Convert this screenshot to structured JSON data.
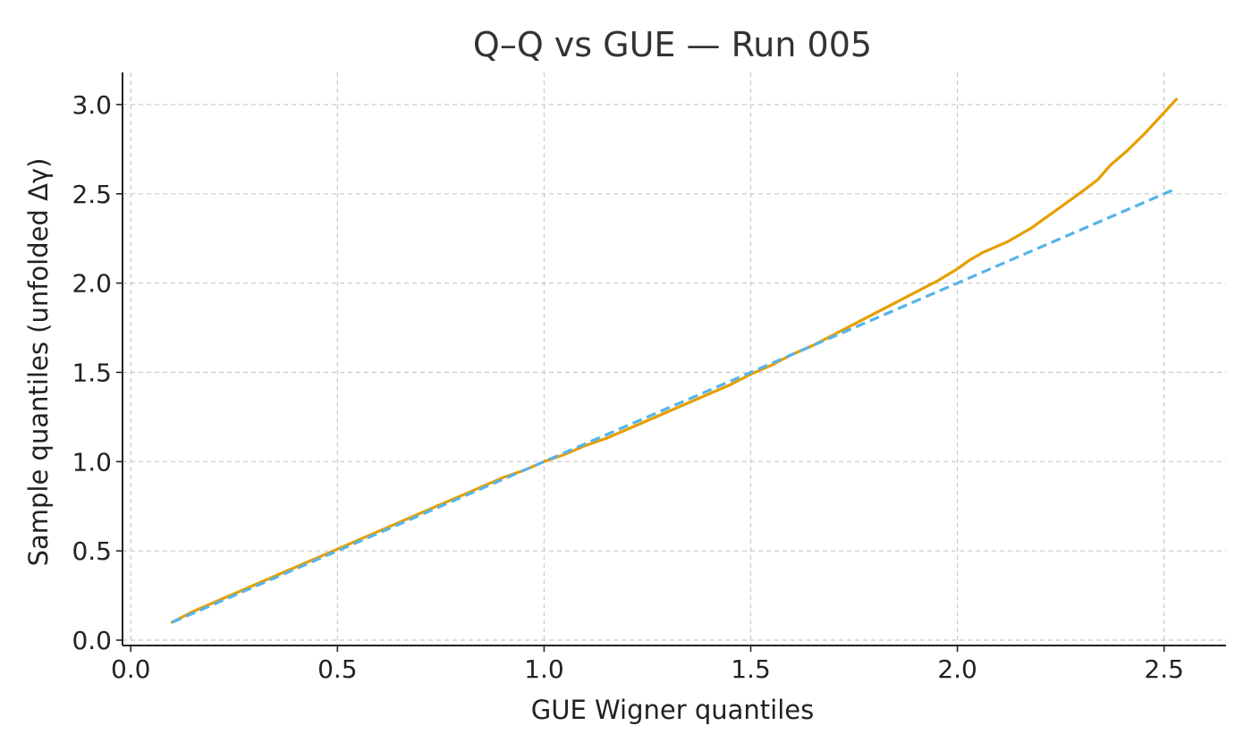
{
  "chart_data": {
    "type": "line",
    "title": "Q–Q vs GUE — Run 005",
    "xlabel": "GUE Wigner quantiles",
    "ylabel": "Sample quantiles (unfolded Δγ)",
    "xlim": [
      -0.02,
      2.65
    ],
    "ylim": [
      -0.03,
      3.18
    ],
    "xticks": [
      0.0,
      0.5,
      1.0,
      1.5,
      2.0,
      2.5
    ],
    "xtick_labels": [
      "0.0",
      "0.5",
      "1.0",
      "1.5",
      "2.0",
      "2.5"
    ],
    "yticks": [
      0.0,
      0.5,
      1.0,
      1.5,
      2.0,
      2.5,
      3.0
    ],
    "ytick_labels": [
      "0.0",
      "0.5",
      "1.0",
      "1.5",
      "2.0",
      "2.5",
      "3.0"
    ],
    "grid": true,
    "legend": "none",
    "series": [
      {
        "style": "solid",
        "color": "#E69F00",
        "x": [
          0.1,
          0.15,
          0.2,
          0.25,
          0.3,
          0.35,
          0.4,
          0.45,
          0.5,
          0.55,
          0.6,
          0.65,
          0.7,
          0.75,
          0.8,
          0.85,
          0.9,
          0.95,
          1.0,
          1.05,
          1.1,
          1.15,
          1.2,
          1.25,
          1.3,
          1.35,
          1.4,
          1.45,
          1.5,
          1.55,
          1.6,
          1.65,
          1.7,
          1.75,
          1.8,
          1.85,
          1.9,
          1.95,
          2.0,
          2.03,
          2.06,
          2.09,
          2.12,
          2.15,
          2.18,
          2.21,
          2.24,
          2.27,
          2.3,
          2.34,
          2.37,
          2.41,
          2.45,
          2.49,
          2.53
        ],
        "y": [
          0.1,
          0.16,
          0.21,
          0.26,
          0.31,
          0.36,
          0.41,
          0.46,
          0.51,
          0.56,
          0.61,
          0.66,
          0.71,
          0.76,
          0.81,
          0.86,
          0.91,
          0.95,
          1.0,
          1.04,
          1.09,
          1.13,
          1.18,
          1.23,
          1.28,
          1.33,
          1.38,
          1.43,
          1.49,
          1.54,
          1.6,
          1.65,
          1.71,
          1.77,
          1.83,
          1.89,
          1.95,
          2.01,
          2.08,
          2.13,
          2.17,
          2.2,
          2.23,
          2.27,
          2.31,
          2.36,
          2.41,
          2.46,
          2.51,
          2.58,
          2.66,
          2.74,
          2.83,
          2.93,
          3.03
        ]
      },
      {
        "style": "dashed",
        "color": "#56B4E9",
        "x": [
          0.1,
          2.53
        ],
        "y": [
          0.1,
          2.53
        ]
      }
    ]
  }
}
